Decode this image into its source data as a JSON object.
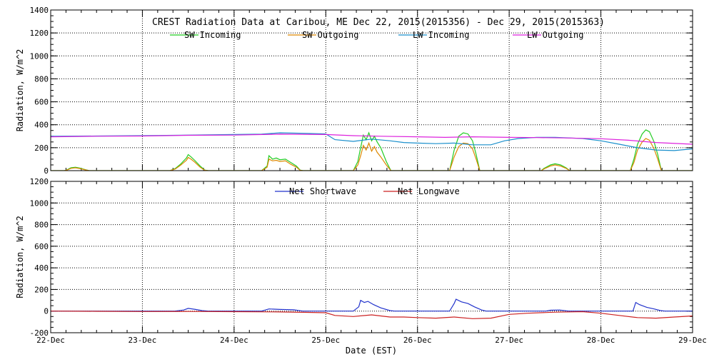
{
  "chart_data": [
    {
      "type": "line",
      "title": "CREST Radiation Data at Caribou, ME   Dec 22, 2015(2015356) - Dec 29, 2015(2015363)",
      "xlabel": "",
      "ylabel": "Radiation, W/m^2",
      "xlim": [
        "22-Dec",
        "29-Dec"
      ],
      "x_ticks": [
        "22-Dec",
        "23-Dec",
        "24-Dec",
        "25-Dec",
        "26-Dec",
        "27-Dec",
        "28-Dec",
        "29-Dec"
      ],
      "ylim": [
        0,
        1400
      ],
      "y_ticks": [
        0,
        200,
        400,
        600,
        800,
        1000,
        1200,
        1400
      ],
      "grid": true,
      "legend_placement": "top",
      "series": [
        {
          "name": "SW Incoming",
          "color": "#22cc22",
          "points": [
            [
              0.0,
              0
            ],
            [
              0.15,
              0
            ],
            [
              0.18,
              8
            ],
            [
              0.22,
              25
            ],
            [
              0.27,
              30
            ],
            [
              0.32,
              22
            ],
            [
              0.38,
              8
            ],
            [
              0.42,
              0
            ],
            [
              1.0,
              0
            ],
            [
              1.3,
              0
            ],
            [
              1.36,
              20
            ],
            [
              1.42,
              60
            ],
            [
              1.48,
              110
            ],
            [
              1.5,
              140
            ],
            [
              1.53,
              120
            ],
            [
              1.57,
              90
            ],
            [
              1.63,
              40
            ],
            [
              1.68,
              5
            ],
            [
              1.72,
              0
            ],
            [
              2.3,
              0
            ],
            [
              2.36,
              40
            ],
            [
              2.38,
              130
            ],
            [
              2.42,
              100
            ],
            [
              2.46,
              110
            ],
            [
              2.5,
              95
            ],
            [
              2.56,
              100
            ],
            [
              2.62,
              70
            ],
            [
              2.68,
              40
            ],
            [
              2.72,
              5
            ],
            [
              2.75,
              0
            ],
            [
              3.3,
              0
            ],
            [
              3.35,
              80
            ],
            [
              3.38,
              200
            ],
            [
              3.41,
              310
            ],
            [
              3.44,
              270
            ],
            [
              3.47,
              330
            ],
            [
              3.5,
              260
            ],
            [
              3.53,
              300
            ],
            [
              3.56,
              250
            ],
            [
              3.6,
              200
            ],
            [
              3.66,
              80
            ],
            [
              3.71,
              0
            ],
            [
              4.35,
              0
            ],
            [
              4.4,
              180
            ],
            [
              4.45,
              300
            ],
            [
              4.5,
              330
            ],
            [
              4.55,
              320
            ],
            [
              4.6,
              260
            ],
            [
              4.64,
              140
            ],
            [
              4.68,
              0
            ],
            [
              5.35,
              0
            ],
            [
              5.38,
              20
            ],
            [
              5.45,
              50
            ],
            [
              5.5,
              60
            ],
            [
              5.56,
              50
            ],
            [
              5.62,
              25
            ],
            [
              5.66,
              0
            ],
            [
              6.32,
              0
            ],
            [
              6.36,
              100
            ],
            [
              6.4,
              230
            ],
            [
              6.45,
              320
            ],
            [
              6.49,
              355
            ],
            [
              6.53,
              340
            ],
            [
              6.58,
              250
            ],
            [
              6.62,
              140
            ],
            [
              6.66,
              0
            ],
            [
              7.0,
              0
            ]
          ]
        },
        {
          "name": "SW Outgoing",
          "color": "#dd8800",
          "points": [
            [
              0.0,
              0
            ],
            [
              0.15,
              0
            ],
            [
              0.18,
              6
            ],
            [
              0.22,
              20
            ],
            [
              0.27,
              25
            ],
            [
              0.32,
              18
            ],
            [
              0.38,
              6
            ],
            [
              0.42,
              0
            ],
            [
              1.0,
              0
            ],
            [
              1.3,
              0
            ],
            [
              1.36,
              15
            ],
            [
              1.42,
              50
            ],
            [
              1.48,
              90
            ],
            [
              1.5,
              115
            ],
            [
              1.53,
              100
            ],
            [
              1.57,
              75
            ],
            [
              1.63,
              30
            ],
            [
              1.68,
              3
            ],
            [
              1.72,
              0
            ],
            [
              2.3,
              0
            ],
            [
              2.36,
              30
            ],
            [
              2.38,
              100
            ],
            [
              2.42,
              85
            ],
            [
              2.46,
              90
            ],
            [
              2.5,
              80
            ],
            [
              2.56,
              85
            ],
            [
              2.62,
              55
            ],
            [
              2.68,
              30
            ],
            [
              2.72,
              3
            ],
            [
              2.75,
              0
            ],
            [
              3.3,
              0
            ],
            [
              3.35,
              50
            ],
            [
              3.38,
              130
            ],
            [
              3.41,
              220
            ],
            [
              3.44,
              180
            ],
            [
              3.47,
              240
            ],
            [
              3.5,
              170
            ],
            [
              3.53,
              210
            ],
            [
              3.56,
              160
            ],
            [
              3.6,
              120
            ],
            [
              3.66,
              50
            ],
            [
              3.71,
              0
            ],
            [
              4.35,
              0
            ],
            [
              4.4,
              120
            ],
            [
              4.45,
              210
            ],
            [
              4.5,
              240
            ],
            [
              4.55,
              235
            ],
            [
              4.6,
              190
            ],
            [
              4.64,
              100
            ],
            [
              4.68,
              0
            ],
            [
              5.35,
              0
            ],
            [
              5.38,
              15
            ],
            [
              5.45,
              40
            ],
            [
              5.5,
              50
            ],
            [
              5.56,
              40
            ],
            [
              5.62,
              20
            ],
            [
              5.66,
              0
            ],
            [
              6.32,
              0
            ],
            [
              6.36,
              70
            ],
            [
              6.4,
              180
            ],
            [
              6.45,
              250
            ],
            [
              6.49,
              280
            ],
            [
              6.53,
              265
            ],
            [
              6.58,
              190
            ],
            [
              6.62,
              100
            ],
            [
              6.66,
              0
            ],
            [
              7.0,
              0
            ]
          ]
        },
        {
          "name": "LW Incoming",
          "color": "#1a8fcc",
          "points": [
            [
              0.0,
              300
            ],
            [
              0.5,
              302
            ],
            [
              1.0,
              305
            ],
            [
              1.5,
              310
            ],
            [
              2.0,
              315
            ],
            [
              2.3,
              318
            ],
            [
              2.5,
              330
            ],
            [
              2.8,
              325
            ],
            [
              3.0,
              320
            ],
            [
              3.1,
              270
            ],
            [
              3.3,
              255
            ],
            [
              3.5,
              275
            ],
            [
              3.7,
              260
            ],
            [
              3.85,
              245
            ],
            [
              4.0,
              240
            ],
            [
              4.2,
              235
            ],
            [
              4.4,
              240
            ],
            [
              4.6,
              225
            ],
            [
              4.8,
              225
            ],
            [
              4.95,
              260
            ],
            [
              5.1,
              280
            ],
            [
              5.3,
              290
            ],
            [
              5.5,
              290
            ],
            [
              5.8,
              280
            ],
            [
              6.0,
              260
            ],
            [
              6.2,
              230
            ],
            [
              6.4,
              200
            ],
            [
              6.6,
              180
            ],
            [
              6.8,
              175
            ],
            [
              7.0,
              190
            ]
          ]
        },
        {
          "name": "LW Outgoing",
          "color": "#dd22dd",
          "points": [
            [
              0.0,
              295
            ],
            [
              0.5,
              300
            ],
            [
              1.0,
              302
            ],
            [
              1.5,
              308
            ],
            [
              2.0,
              310
            ],
            [
              2.5,
              318
            ],
            [
              3.0,
              315
            ],
            [
              3.3,
              305
            ],
            [
              3.6,
              300
            ],
            [
              4.0,
              295
            ],
            [
              4.3,
              290
            ],
            [
              4.6,
              295
            ],
            [
              5.0,
              290
            ],
            [
              5.3,
              288
            ],
            [
              5.6,
              285
            ],
            [
              6.0,
              278
            ],
            [
              6.3,
              265
            ],
            [
              6.6,
              245
            ],
            [
              7.0,
              230
            ]
          ]
        }
      ]
    },
    {
      "type": "line",
      "title": "",
      "xlabel": "Date (EST)",
      "ylabel": "Radiation, W/m^2",
      "xlim": [
        "22-Dec",
        "29-Dec"
      ],
      "x_ticks": [
        "22-Dec",
        "23-Dec",
        "24-Dec",
        "25-Dec",
        "26-Dec",
        "27-Dec",
        "28-Dec",
        "29-Dec"
      ],
      "ylim": [
        -200,
        1200
      ],
      "y_ticks": [
        -200,
        0,
        200,
        400,
        600,
        800,
        1000,
        1200
      ],
      "grid": true,
      "legend_placement": "top",
      "series": [
        {
          "name": "Net Shortwave",
          "color": "#2233cc",
          "points": [
            [
              0.0,
              0
            ],
            [
              1.35,
              0
            ],
            [
              1.45,
              10
            ],
            [
              1.5,
              25
            ],
            [
              1.58,
              15
            ],
            [
              1.65,
              5
            ],
            [
              1.72,
              0
            ],
            [
              2.3,
              0
            ],
            [
              2.38,
              20
            ],
            [
              2.5,
              15
            ],
            [
              2.65,
              12
            ],
            [
              2.75,
              0
            ],
            [
              3.0,
              0
            ],
            [
              3.3,
              0
            ],
            [
              3.36,
              40
            ],
            [
              3.38,
              100
            ],
            [
              3.42,
              80
            ],
            [
              3.46,
              90
            ],
            [
              3.52,
              60
            ],
            [
              3.6,
              30
            ],
            [
              3.7,
              5
            ],
            [
              3.75,
              0
            ],
            [
              4.35,
              0
            ],
            [
              4.4,
              70
            ],
            [
              4.42,
              110
            ],
            [
              4.48,
              85
            ],
            [
              4.55,
              70
            ],
            [
              4.62,
              40
            ],
            [
              4.7,
              10
            ],
            [
              4.75,
              0
            ],
            [
              5.4,
              0
            ],
            [
              5.45,
              8
            ],
            [
              5.55,
              10
            ],
            [
              5.65,
              0
            ],
            [
              6.35,
              0
            ],
            [
              6.38,
              80
            ],
            [
              6.42,
              60
            ],
            [
              6.5,
              35
            ],
            [
              6.58,
              20
            ],
            [
              6.65,
              5
            ],
            [
              6.7,
              0
            ],
            [
              7.0,
              0
            ]
          ]
        },
        {
          "name": "Net Longwave",
          "color": "#cc2222",
          "points": [
            [
              0.0,
              0
            ],
            [
              0.5,
              -2
            ],
            [
              1.0,
              -4
            ],
            [
              1.5,
              -3
            ],
            [
              2.0,
              -5
            ],
            [
              2.5,
              -8
            ],
            [
              2.8,
              -12
            ],
            [
              3.0,
              -15
            ],
            [
              3.1,
              -40
            ],
            [
              3.3,
              -50
            ],
            [
              3.5,
              -35
            ],
            [
              3.7,
              -55
            ],
            [
              3.85,
              -55
            ],
            [
              4.0,
              -60
            ],
            [
              4.2,
              -65
            ],
            [
              4.4,
              -55
            ],
            [
              4.6,
              -70
            ],
            [
              4.8,
              -65
            ],
            [
              5.0,
              -30
            ],
            [
              5.2,
              -20
            ],
            [
              5.5,
              -10
            ],
            [
              5.8,
              -5
            ],
            [
              6.0,
              -20
            ],
            [
              6.2,
              -40
            ],
            [
              6.4,
              -60
            ],
            [
              6.6,
              -65
            ],
            [
              6.8,
              -55
            ],
            [
              7.0,
              -45
            ]
          ]
        }
      ]
    }
  ]
}
